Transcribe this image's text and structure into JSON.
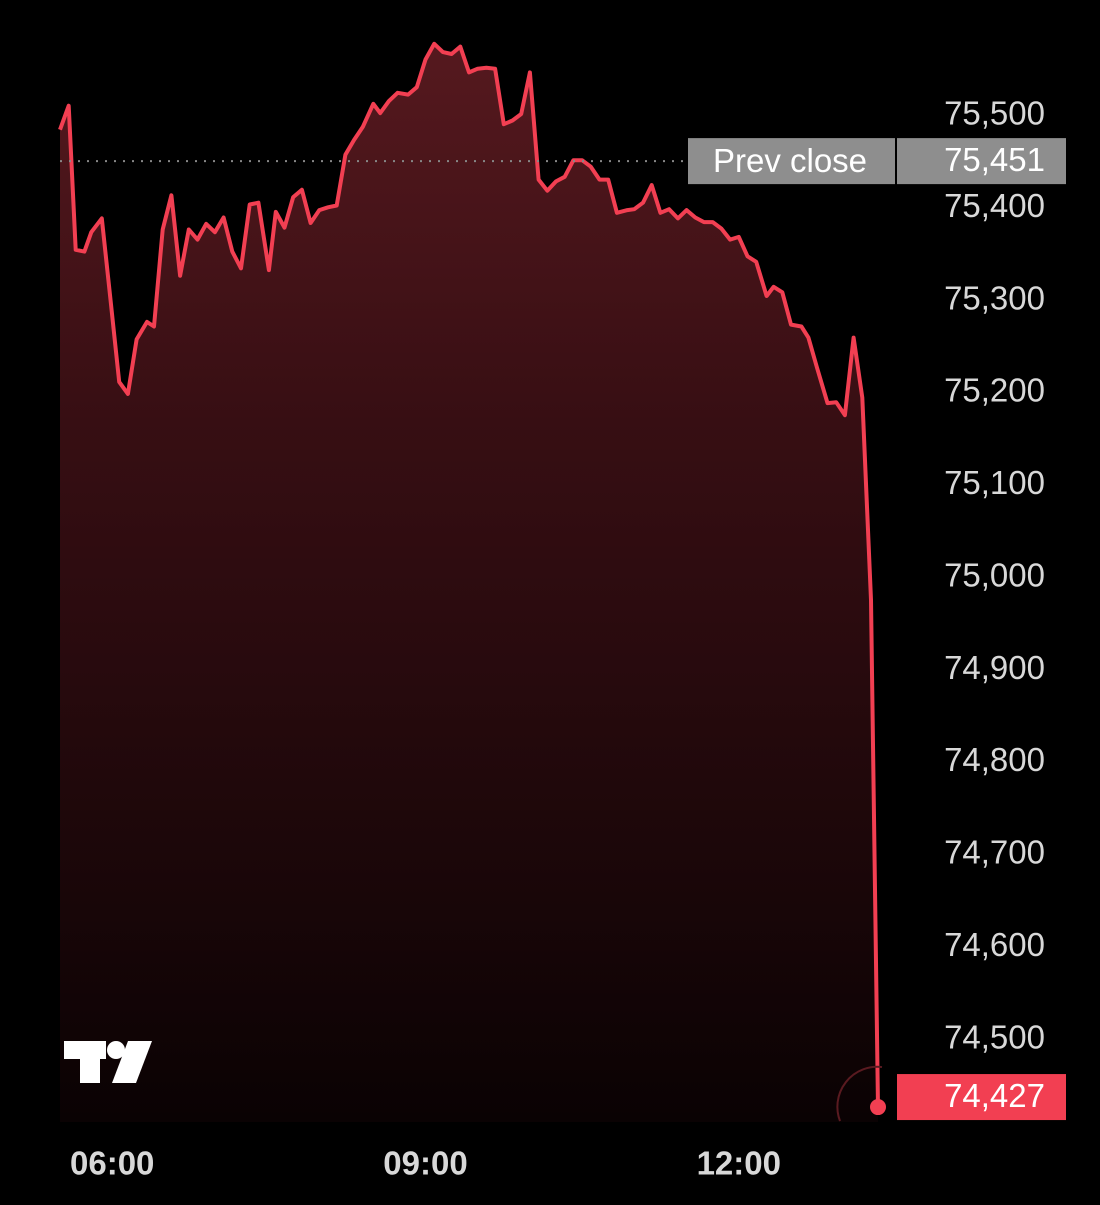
{
  "chart_data": {
    "type": "line",
    "x": [
      330,
      335,
      339,
      344,
      348,
      354,
      359,
      364,
      369,
      374,
      380,
      384,
      389,
      394,
      399,
      404,
      409,
      414,
      419,
      424,
      429,
      434,
      439,
      444,
      450,
      454,
      459,
      464,
      469,
      474,
      479,
      484,
      489,
      494,
      499,
      504,
      510,
      514,
      519,
      524,
      530,
      535,
      540,
      545,
      550,
      555,
      560,
      565,
      570,
      575,
      580,
      585,
      590,
      595,
      600,
      605,
      610,
      615,
      620,
      625,
      630,
      635,
      640,
      645,
      650,
      656,
      660,
      665,
      670,
      675,
      680,
      685,
      690,
      695,
      700,
      705,
      710,
      715,
      720,
      725,
      730,
      736,
      740,
      745,
      750,
      756,
      760,
      765,
      771,
      776,
      781,
      786,
      791,
      796,
      800
    ],
    "series": [
      {
        "color": "#f23f52",
        "values": [
          75485,
          75511,
          75355,
          75353,
          75374,
          75389,
          75301,
          75212,
          75199,
          75258,
          75277,
          75272,
          75377,
          75414,
          75327,
          75377,
          75366,
          75383,
          75374,
          75390,
          75353,
          75335,
          75404,
          75406,
          75333,
          75396,
          75379,
          75412,
          75420,
          75384,
          75398,
          75401,
          75403,
          75458,
          75474,
          75488,
          75513,
          75503,
          75516,
          75525,
          75523,
          75531,
          75561,
          75578,
          75569,
          75567,
          75575,
          75547,
          75551,
          75552,
          75551,
          75491,
          75495,
          75502,
          75547,
          75431,
          75419,
          75429,
          75434,
          75452,
          75452,
          75445,
          75431,
          75431,
          75395,
          75398,
          75399,
          75406,
          75425,
          75395,
          75399,
          75389,
          75398,
          75390,
          75385,
          75385,
          75378,
          75366,
          75369,
          75348,
          75342,
          75305,
          75315,
          75309,
          75274,
          75272,
          75260,
          75227,
          75189,
          75190,
          75176,
          75260,
          75195,
          74976,
          74427
        ]
      }
    ],
    "xlim": [
      330,
      800
    ],
    "xticks": [
      {
        "value": 360,
        "label": "06:00"
      },
      {
        "value": 540,
        "label": "09:00"
      },
      {
        "value": 720,
        "label": "12:00"
      }
    ],
    "ylim": [
      74400,
      75620
    ],
    "yticks": [
      {
        "value": 74500,
        "label": "74,500"
      },
      {
        "value": 74600,
        "label": "74,600"
      },
      {
        "value": 74700,
        "label": "74,700"
      },
      {
        "value": 74800,
        "label": "74,800"
      },
      {
        "value": 74900,
        "label": "74,900"
      },
      {
        "value": 75000,
        "label": "75,000"
      },
      {
        "value": 75100,
        "label": "75,100"
      },
      {
        "value": 75200,
        "label": "75,200"
      },
      {
        "value": 75300,
        "label": "75,300"
      },
      {
        "value": 75400,
        "label": "75,400"
      },
      {
        "value": 75500,
        "label": "75,500"
      }
    ],
    "grid": false,
    "prev_close": {
      "name": "Prev close",
      "value": 75451,
      "label": "75,451"
    },
    "last_price": {
      "value": 74427,
      "label": "74,427"
    }
  }
}
